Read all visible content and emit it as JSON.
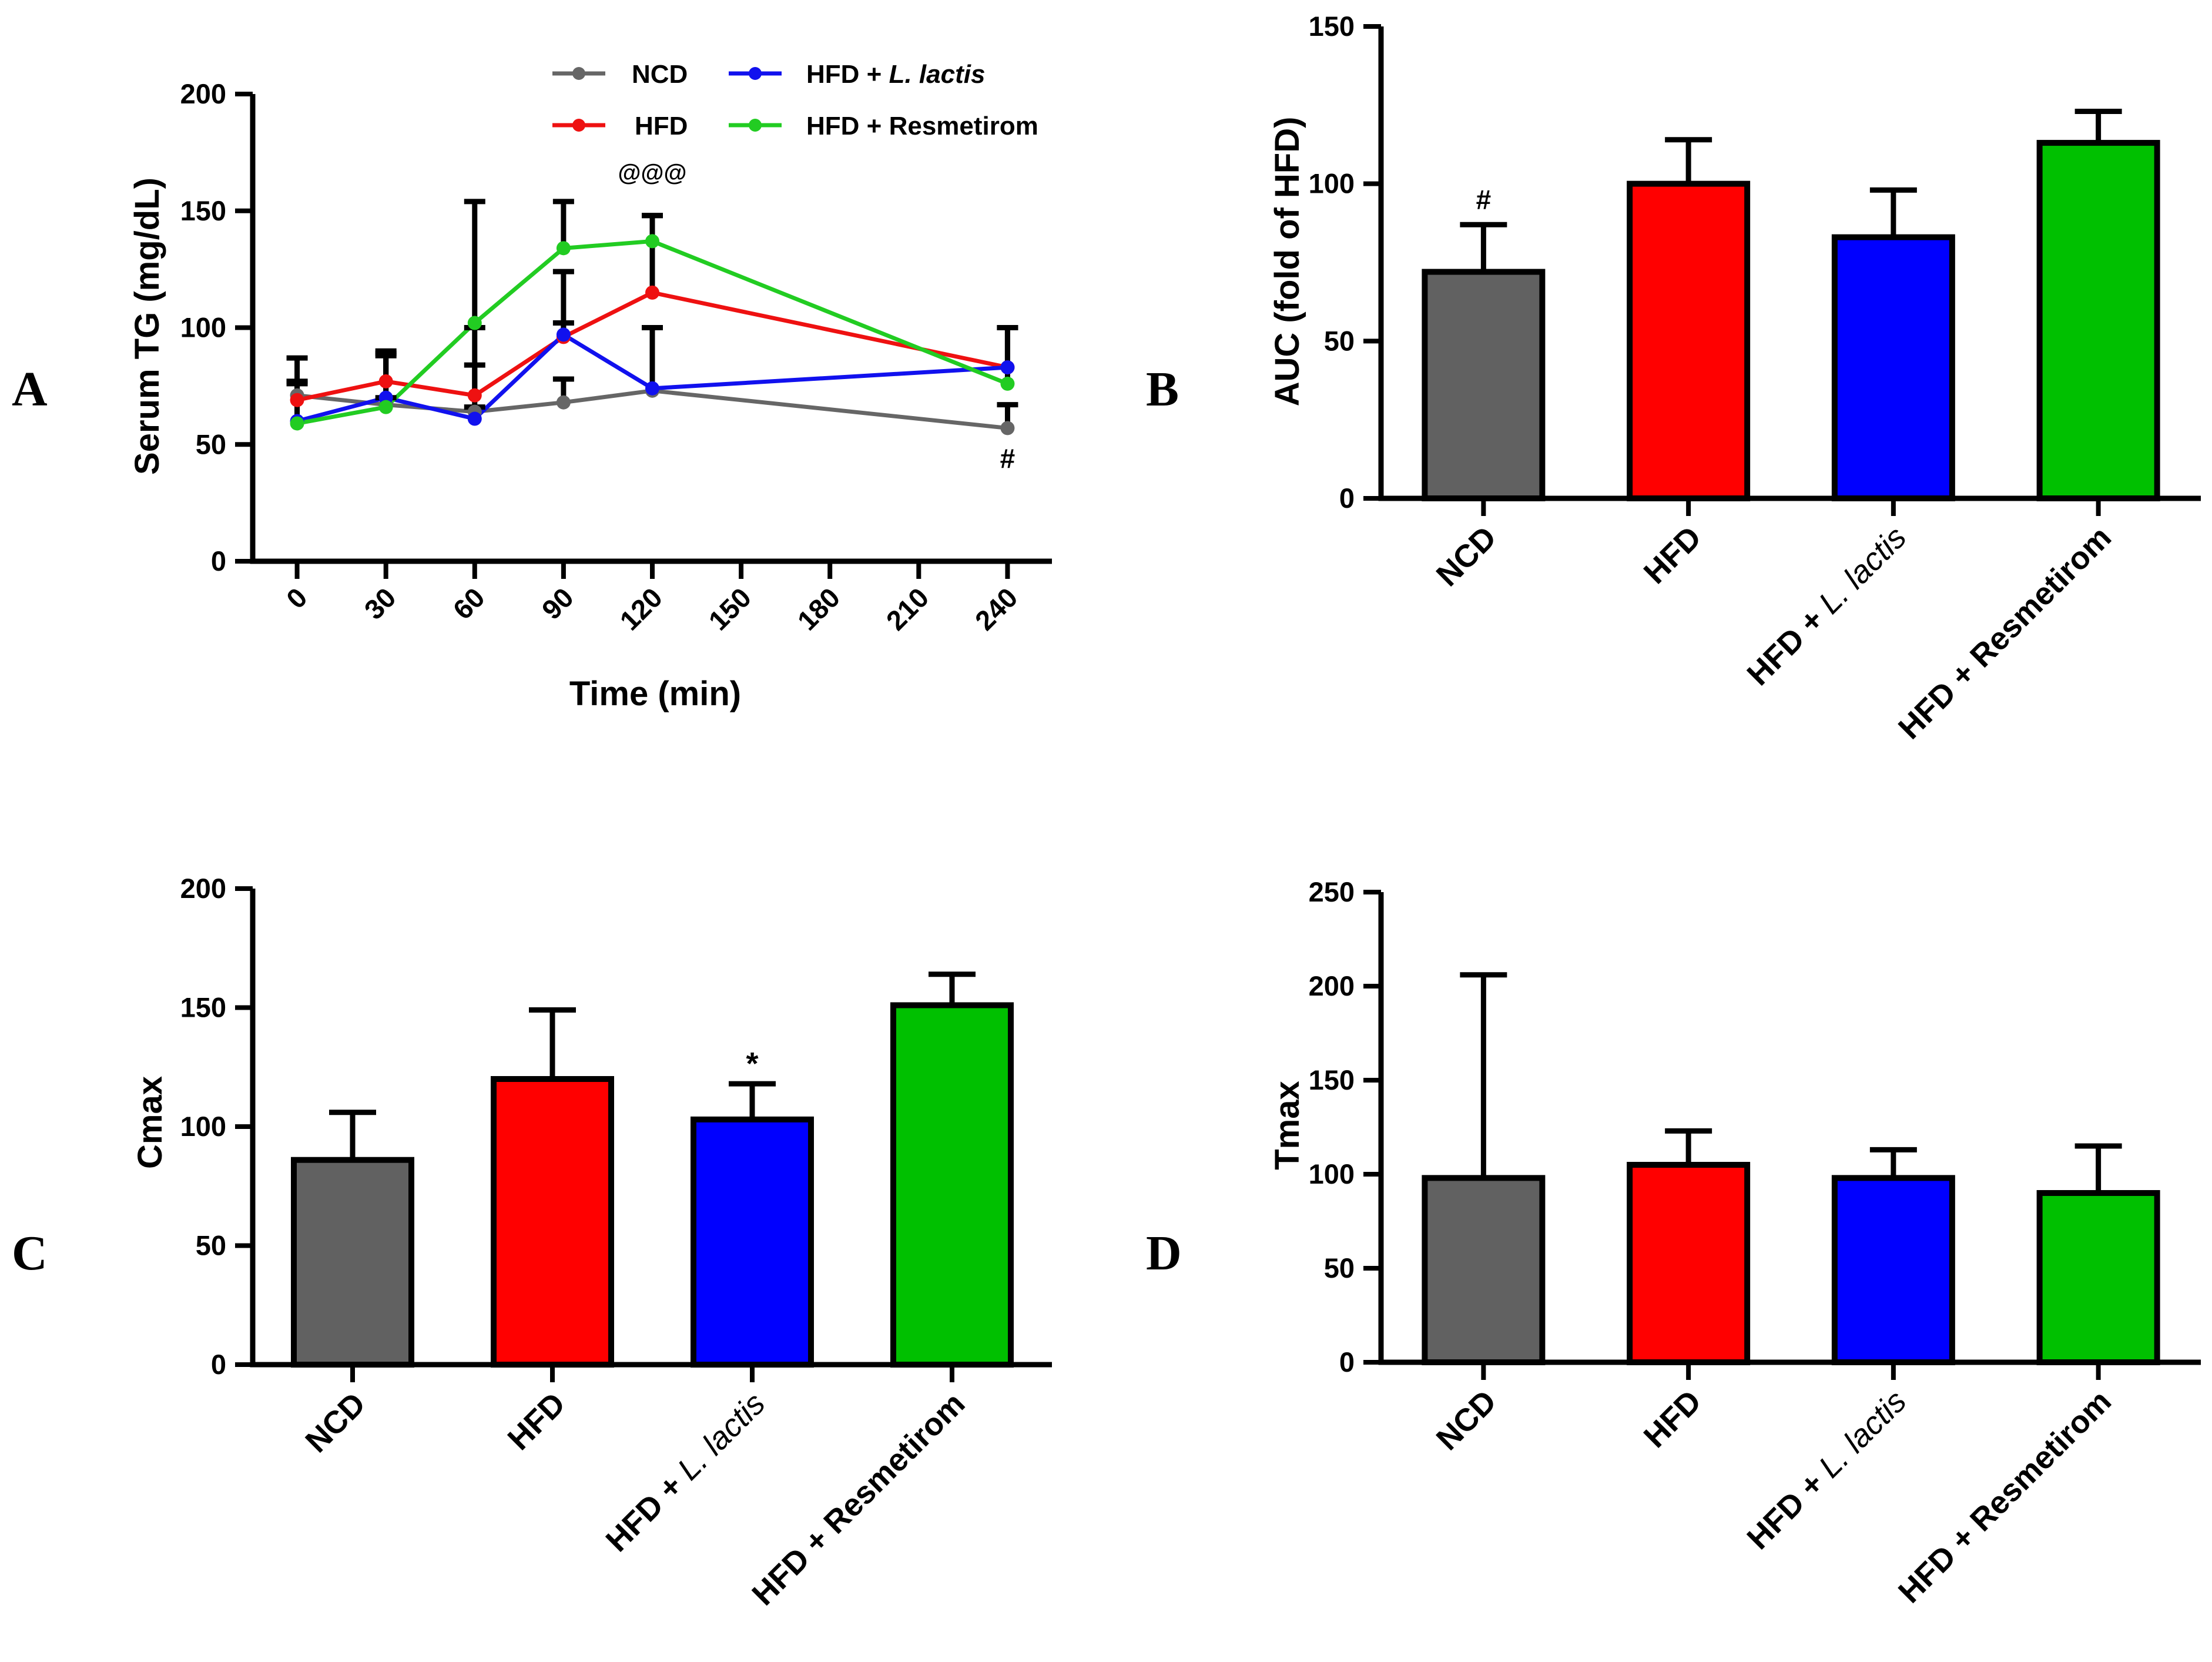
{
  "panel_letters": {
    "a": "A",
    "b": "B",
    "c": "C",
    "d": "D"
  },
  "colors": {
    "NCD": "#616161",
    "HFD": "#ff0000",
    "HFD + L. lactis": "#0000ff",
    "HFD + Resmetirom": "#00c000",
    "A_HFD": "#ee1111",
    "A_Lactis": "#1111ee",
    "A_Res": "#22cc22"
  },
  "chart_data": [
    {
      "id": "A",
      "type": "line",
      "ylabel": "Serum TG (mg/dL)",
      "xlabel": "Time (min)",
      "ylim": [
        0,
        200
      ],
      "yticks": [
        "0",
        "50",
        "100",
        "150",
        "200"
      ],
      "xlim": [
        -15,
        255
      ],
      "xticks": [
        "0",
        "30",
        "60",
        "90",
        "120",
        "150",
        "180",
        "210",
        "240"
      ],
      "legend": {
        "ncd": "NCD",
        "hfd": "HFD",
        "lactis_prefix": "HFD + ",
        "lactis_italic": "L. lactis",
        "res": "HFD + Resmetirom"
      },
      "series": [
        {
          "name": "NCD",
          "x": [
            0,
            30,
            60,
            90,
            120,
            240
          ],
          "values": [
            71,
            67,
            64,
            68,
            73,
            57
          ],
          "err_up": [
            6,
            3,
            2,
            10,
            27,
            10
          ],
          "err_down": [
            0,
            0,
            0,
            0,
            0,
            0
          ]
        },
        {
          "name": "HFD",
          "x": [
            0,
            30,
            60,
            90,
            120,
            240
          ],
          "values": [
            69,
            77,
            71,
            96,
            115,
            83
          ],
          "err_up": [
            18,
            13,
            29,
            28,
            33,
            17
          ],
          "err_down": [
            0,
            0,
            0,
            0,
            0,
            0
          ]
        },
        {
          "name": "HFD + L. lactis",
          "x": [
            0,
            30,
            60,
            90,
            120,
            240
          ],
          "values": [
            60,
            70,
            61,
            97,
            74,
            83
          ],
          "err_up": [
            16,
            18,
            23,
            5,
            26,
            17
          ],
          "err_down": [
            0,
            0,
            0,
            0,
            0,
            0
          ]
        },
        {
          "name": "HFD + Resmetirom",
          "x": [
            0,
            30,
            60,
            90,
            120,
            240
          ],
          "values": [
            59,
            66,
            102,
            134,
            137,
            76
          ],
          "err_up": [
            18,
            23,
            52,
            20,
            11,
            24
          ],
          "err_down": [
            0,
            0,
            0,
            0,
            0,
            0
          ]
        }
      ],
      "annotations": {
        "at120": "@@@",
        "at240": "#"
      }
    },
    {
      "id": "B",
      "type": "bar",
      "ylabel": "AUC (fold of HFD)",
      "ylim": [
        0,
        150
      ],
      "yticks": [
        "0",
        "50",
        "100",
        "150"
      ],
      "categories": [
        "NCD",
        "HFD",
        "HFD + L. lactis",
        "HFD + Resmetirom"
      ],
      "values": [
        72,
        100,
        83,
        113
      ],
      "err_up": [
        15,
        14,
        15,
        10
      ],
      "annotations": {
        "NCD": "#"
      }
    },
    {
      "id": "C",
      "type": "bar",
      "ylabel": "Cmax",
      "ylim": [
        0,
        200
      ],
      "yticks": [
        "0",
        "50",
        "100",
        "150",
        "200"
      ],
      "categories": [
        "NCD",
        "HFD",
        "HFD + L. lactis",
        "HFD + Resmetirom"
      ],
      "values": [
        86,
        120,
        103,
        151
      ],
      "err_up": [
        20,
        29,
        15,
        13
      ],
      "annotations": {
        "HFD + L. lactis": "*"
      }
    },
    {
      "id": "D",
      "type": "bar",
      "ylabel": "Tmax",
      "ylim": [
        0,
        250
      ],
      "yticks": [
        "0",
        "50",
        "100",
        "150",
        "200",
        "250"
      ],
      "categories": [
        "NCD",
        "HFD",
        "HFD + L. lactis",
        "HFD + Resmetirom"
      ],
      "values": [
        98,
        105,
        98,
        90
      ],
      "err_up": [
        108,
        18,
        15,
        25
      ]
    }
  ],
  "category_parts": {
    "ncd": "NCD",
    "hfd": "HFD",
    "lactis_prefix": "HFD + ",
    "lactis_italic": "L. lactis",
    "res": "HFD + Resmetirom"
  }
}
